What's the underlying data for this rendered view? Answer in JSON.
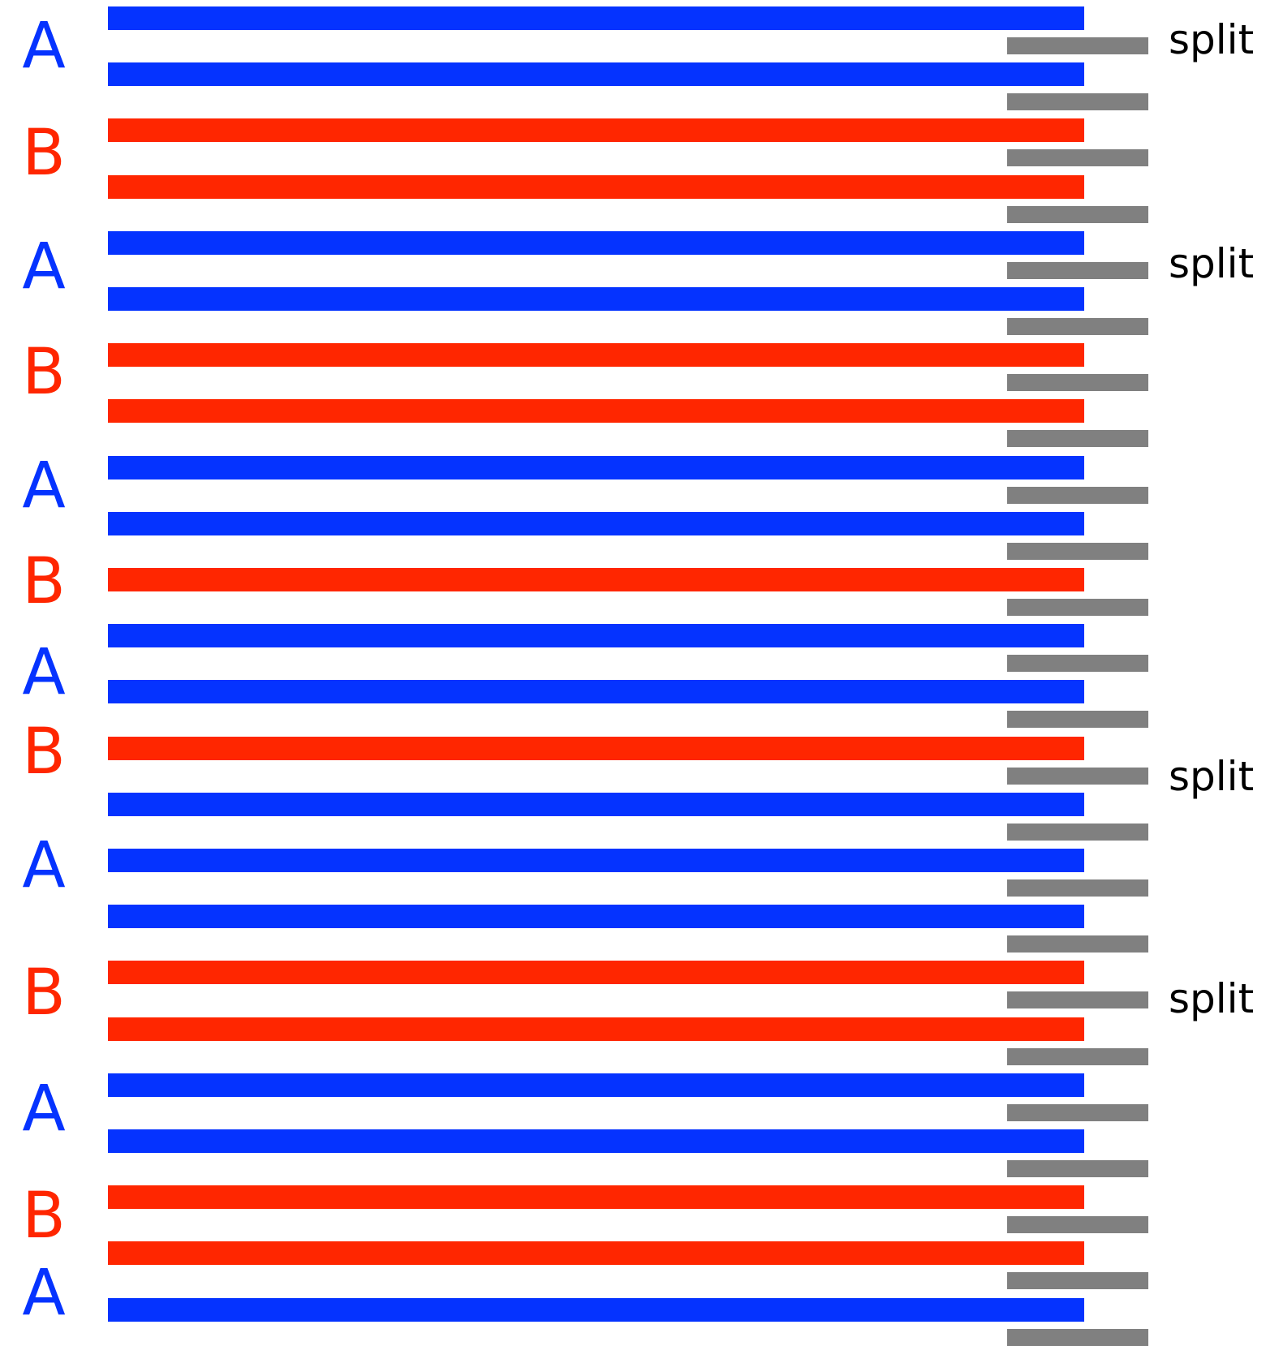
{
  "colors": {
    "A": "#0533ff",
    "B": "#ff2600",
    "tick": "#808080",
    "text": "#000000"
  },
  "rows": [
    "A",
    "A",
    "B",
    "B",
    "A",
    "A",
    "B",
    "B",
    "A",
    "A",
    "B",
    "A",
    "A",
    "B",
    "A",
    "A",
    "A",
    "B",
    "B",
    "A",
    "A",
    "B",
    "B",
    "A"
  ],
  "group_labels": [
    {
      "text": "A",
      "group": "A"
    },
    {
      "text": "B",
      "group": "B"
    },
    {
      "text": "A",
      "group": "A"
    },
    {
      "text": "B",
      "group": "B"
    },
    {
      "text": "A",
      "group": "A"
    },
    {
      "text": "B",
      "group": "B"
    },
    {
      "text": "A",
      "group": "A"
    },
    {
      "text": "B",
      "group": "B"
    },
    {
      "text": "A",
      "group": "A"
    },
    {
      "text": "B",
      "group": "B"
    },
    {
      "text": "A",
      "group": "A"
    },
    {
      "text": "B",
      "group": "B"
    },
    {
      "text": "A",
      "group": "A"
    }
  ],
  "tick_count": 24,
  "split_text": "split",
  "split_count": 4
}
